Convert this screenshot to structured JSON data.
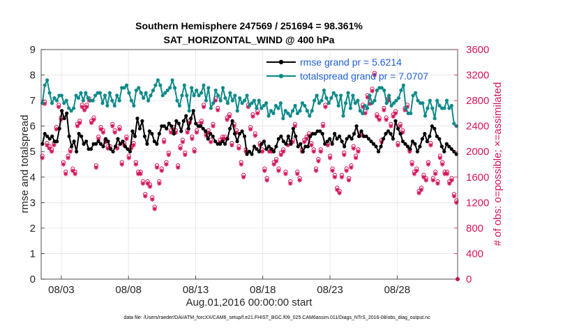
{
  "colors": {
    "rmse": "#000000",
    "spread": "#0e8a8a",
    "obs": "#d4145a",
    "legend_text": "#1f5fd6"
  },
  "chart_data": {
    "type": "line",
    "title": [
      "Southern Hemisphere 247569 / 251694 = 98.361%",
      "SAT_HORIZONTAL_WIND @ 400 hPa"
    ],
    "xlabel": "Aug.01,2016 00:00:00 start",
    "ylabel_left": "rmse and totalspread",
    "ylabel_right": "# of obs: o=possible; ×=assimilated",
    "footnote": "data file: /Users/raeder/DAI/ATM_forcXX/CAM6_setup/f.e21.FHIST_BGC.f09_025.CAM6assim.011/Diags_NTrS_2016-08/obs_diag_output.nc",
    "xlim": [
      1.5,
      32.5
    ],
    "ylim_left": [
      0,
      9
    ],
    "ylim_right": [
      0,
      3600
    ],
    "xticks": [
      3,
      8,
      13,
      18,
      23,
      28
    ],
    "xtick_labels": [
      "08/03",
      "08/08",
      "08/13",
      "08/18",
      "08/23",
      "08/28"
    ],
    "yticks_left": [
      "0",
      "1",
      "2",
      "3",
      "4",
      "5",
      "6",
      "7",
      "8",
      "9"
    ],
    "yticks_right": [
      "0",
      "400",
      "800",
      "1200",
      "1600",
      "2000",
      "2400",
      "2800",
      "3200",
      "3600"
    ],
    "grid": true,
    "legend_position": "top-right",
    "series": [
      {
        "name": "rmse grand pr = 5.6214",
        "axis": "left",
        "values": [
          5.3,
          5.7,
          5.6,
          5.5,
          5.6,
          5.4,
          5.4,
          5.9,
          6.6,
          6.3,
          6.5,
          5.6,
          5.2,
          5.4,
          5.0,
          5.7,
          5.6,
          5.3,
          5.4,
          5.1,
          5.1,
          5.3,
          5.3,
          5.4,
          5.3,
          5.2,
          5.5,
          5.4,
          5.1,
          5.0,
          5.2,
          5.5,
          5.3,
          5.4,
          5.2,
          5.1,
          5.0,
          5.8,
          5.6,
          6.3,
          5.9,
          6.2,
          5.6,
          5.3,
          5.8,
          5.7,
          5.4,
          5.3,
          5.7,
          6.0,
          6.0,
          5.9,
          6.1,
          6.0,
          5.7,
          6.2,
          6.1,
          5.8,
          6.2,
          6.4,
          5.9,
          6.3,
          6.6,
          6.1,
          6.0,
          6.0,
          5.9,
          5.8,
          5.5,
          5.7,
          5.6,
          5.4,
          5.3,
          5.3,
          5.4,
          5.3,
          5.5,
          5.9,
          6.2,
          5.7,
          5.4,
          5.7,
          5.8,
          5.6,
          4.9,
          5.0,
          4.9,
          5.2,
          5.1,
          5.0,
          5.3,
          5.4,
          5.1,
          5.2,
          5.1,
          5.0,
          5.2,
          5.5,
          5.6,
          5.4,
          5.3,
          5.6,
          5.3,
          5.9,
          5.6,
          5.2,
          5.3,
          5.0,
          5.2,
          5.2,
          5.6,
          5.7,
          5.7,
          5.8,
          5.8,
          5.7,
          5.3,
          5.4,
          5.5,
          5.3,
          5.7,
          5.5,
          5.6,
          5.4,
          5.2,
          5.5,
          5.6,
          5.5,
          5.7,
          6.0,
          5.6,
          5.8,
          5.6,
          5.6,
          5.5,
          5.4,
          5.3,
          5.2,
          5.0,
          5.2,
          5.5,
          5.7,
          5.8,
          5.7,
          5.5,
          6.2,
          5.9,
          5.7,
          5.4,
          5.3,
          5.2,
          5.1,
          5.4,
          5.3,
          5.0,
          5.2,
          5.5,
          5.7,
          5.4,
          5.6,
          6.0,
          5.9,
          5.6,
          5.5,
          5.2,
          5.0,
          5.3,
          5.2,
          5.1,
          5.0,
          4.9
        ]
      },
      {
        "name": "totalspread grand pr = 7.0707",
        "axis": "left",
        "values": [
          6.9,
          7.6,
          7.8,
          7.3,
          6.9,
          7.1,
          7.0,
          7.2,
          7.2,
          6.9,
          7.0,
          6.7,
          6.6,
          6.7,
          7.2,
          7.1,
          7.3,
          7.0,
          7.3,
          7.1,
          7.0,
          7.0,
          7.2,
          7.3,
          7.3,
          6.9,
          7.2,
          6.8,
          7.3,
          7.0,
          6.8,
          7.2,
          7.0,
          7.5,
          7.5,
          7.6,
          7.3,
          7.0,
          6.8,
          7.4,
          7.5,
          7.3,
          7.1,
          7.3,
          7.0,
          7.2,
          7.4,
          7.6,
          7.8,
          7.6,
          7.2,
          7.3,
          7.4,
          7.5,
          7.8,
          7.5,
          7.0,
          6.8,
          7.2,
          7.6,
          7.2,
          6.6,
          7.5,
          7.2,
          7.4,
          7.2,
          7.3,
          7.6,
          7.0,
          7.5,
          6.7,
          6.9,
          7.4,
          7.2,
          7.0,
          7.5,
          7.1,
          6.9,
          7.3,
          7.0,
          7.2,
          6.6,
          7.1,
          6.9,
          7.0,
          7.2,
          6.8,
          6.9,
          7.0,
          6.7,
          7.0,
          6.7,
          6.8,
          6.9,
          6.4,
          6.6,
          6.5,
          6.8,
          6.7,
          6.9,
          6.3,
          6.6,
          6.5,
          6.4,
          6.6,
          6.8,
          6.5,
          6.6,
          6.9,
          6.8,
          6.6,
          6.4,
          6.6,
          7.0,
          7.2,
          6.9,
          7.0,
          7.4,
          7.1,
          6.9,
          7.1,
          7.3,
          7.2,
          6.8,
          7.2,
          6.4,
          6.9,
          7.3,
          6.7,
          7.2,
          6.9,
          7.0,
          6.6,
          6.5,
          6.8,
          6.7,
          7.2,
          6.9,
          7.0,
          7.4,
          7.5,
          7.5,
          7.4,
          6.9,
          7.2,
          6.8,
          6.9,
          7.0,
          7.1,
          7.4,
          7.6,
          6.7,
          6.5,
          6.5,
          7.2,
          7.3,
          7.0,
          6.9,
          6.9,
          6.4,
          6.7,
          7.0,
          6.7,
          6.3,
          7.0,
          6.8,
          6.7,
          6.7,
          7.0,
          6.7,
          6.8,
          6.1,
          6.0
        ]
      }
    ],
    "obs_counts": {
      "name": "# of obs",
      "axis": "right",
      "values": [
        1900,
        2750,
        2100,
        2050,
        2000,
        2100,
        2350,
        2700,
        2500,
        1800,
        1650,
        1900,
        2000,
        1700,
        1650,
        2400,
        2450,
        2700,
        2650,
        2700,
        2800,
        2450,
        2500,
        1750,
        2200,
        2350,
        2300,
        2150,
        2050,
        2050,
        2400,
        2300,
        2050,
        2350,
        1800,
        2100,
        2200,
        1900,
        2050,
        2100,
        1800,
        1650,
        1650,
        1500,
        1300,
        1500,
        1450,
        1250,
        1100,
        1750,
        1500,
        1700,
        2150,
        1800,
        1950,
        2300,
        2350,
        2300,
        1750,
        2050,
        2150,
        1950,
        2300,
        2450,
        2200,
        2000,
        2300,
        2400,
        2450,
        2700,
        2250,
        2300,
        2150,
        2400,
        2800,
        2650,
        2150,
        2200,
        2200,
        2500,
        2550,
        2100,
        2400,
        2300,
        2050,
        1800,
        1600,
        2000,
        2700,
        2350,
        2550,
        2250,
        2600,
        2100,
        2000,
        1700,
        1550,
        2000,
        2000,
        1800,
        1850,
        1700,
        1950,
        2000,
        1650,
        2100,
        1500,
        2150,
        2400,
        1650,
        1550,
        2000,
        2150,
        2200,
        2250,
        2100,
        2000,
        1700,
        1850,
        2000,
        2400,
        2700,
        2100,
        1900,
        1700,
        1600,
        1400,
        1350,
        1600,
        1950,
        1700,
        1550,
        1750,
        2050,
        1900,
        2000,
        2250,
        2700,
        2600,
        2850,
        2750,
        2950,
        3200,
        2550,
        2500,
        2150,
        2650,
        2500,
        2800,
        2400,
        2550,
        2600,
        2100,
        2400,
        2300,
        2650,
        2700,
        2000,
        1800,
        1650,
        1700,
        1350,
        1400,
        1600,
        1550,
        1800,
        2100,
        1550,
        1650,
        1500,
        1900,
        1800,
        1650,
        1650,
        1500,
        1550,
        1300,
        1200
      ]
    }
  }
}
